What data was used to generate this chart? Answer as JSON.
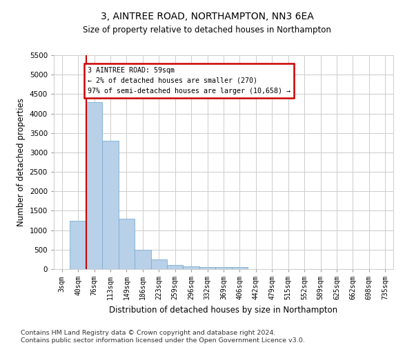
{
  "title1": "3, AINTREE ROAD, NORTHAMPTON, NN3 6EA",
  "title2": "Size of property relative to detached houses in Northampton",
  "xlabel": "Distribution of detached houses by size in Northampton",
  "ylabel": "Number of detached properties",
  "bins": [
    "3sqm",
    "40sqm",
    "76sqm",
    "113sqm",
    "149sqm",
    "186sqm",
    "223sqm",
    "259sqm",
    "296sqm",
    "332sqm",
    "369sqm",
    "406sqm",
    "442sqm",
    "479sqm",
    "515sqm",
    "552sqm",
    "589sqm",
    "625sqm",
    "662sqm",
    "698sqm",
    "735sqm"
  ],
  "values": [
    0,
    1250,
    4300,
    3300,
    1300,
    500,
    250,
    100,
    75,
    50,
    50,
    50,
    0,
    0,
    0,
    0,
    0,
    0,
    0,
    0,
    0
  ],
  "bar_color": "#b8d0e8",
  "bar_edge_color": "#7aafd4",
  "annotation_text": "3 AINTREE ROAD: 59sqm\n← 2% of detached houses are smaller (270)\n97% of semi-detached houses are larger (10,658) →",
  "annotation_box_color": "#ffffff",
  "annotation_border_color": "#cc0000",
  "ylim": [
    0,
    5500
  ],
  "yticks": [
    0,
    500,
    1000,
    1500,
    2000,
    2500,
    3000,
    3500,
    4000,
    4500,
    5000,
    5500
  ],
  "footnote": "Contains HM Land Registry data © Crown copyright and database right 2024.\nContains public sector information licensed under the Open Government Licence v3.0.",
  "bg_color": "#ffffff",
  "grid_color": "#cccccc"
}
